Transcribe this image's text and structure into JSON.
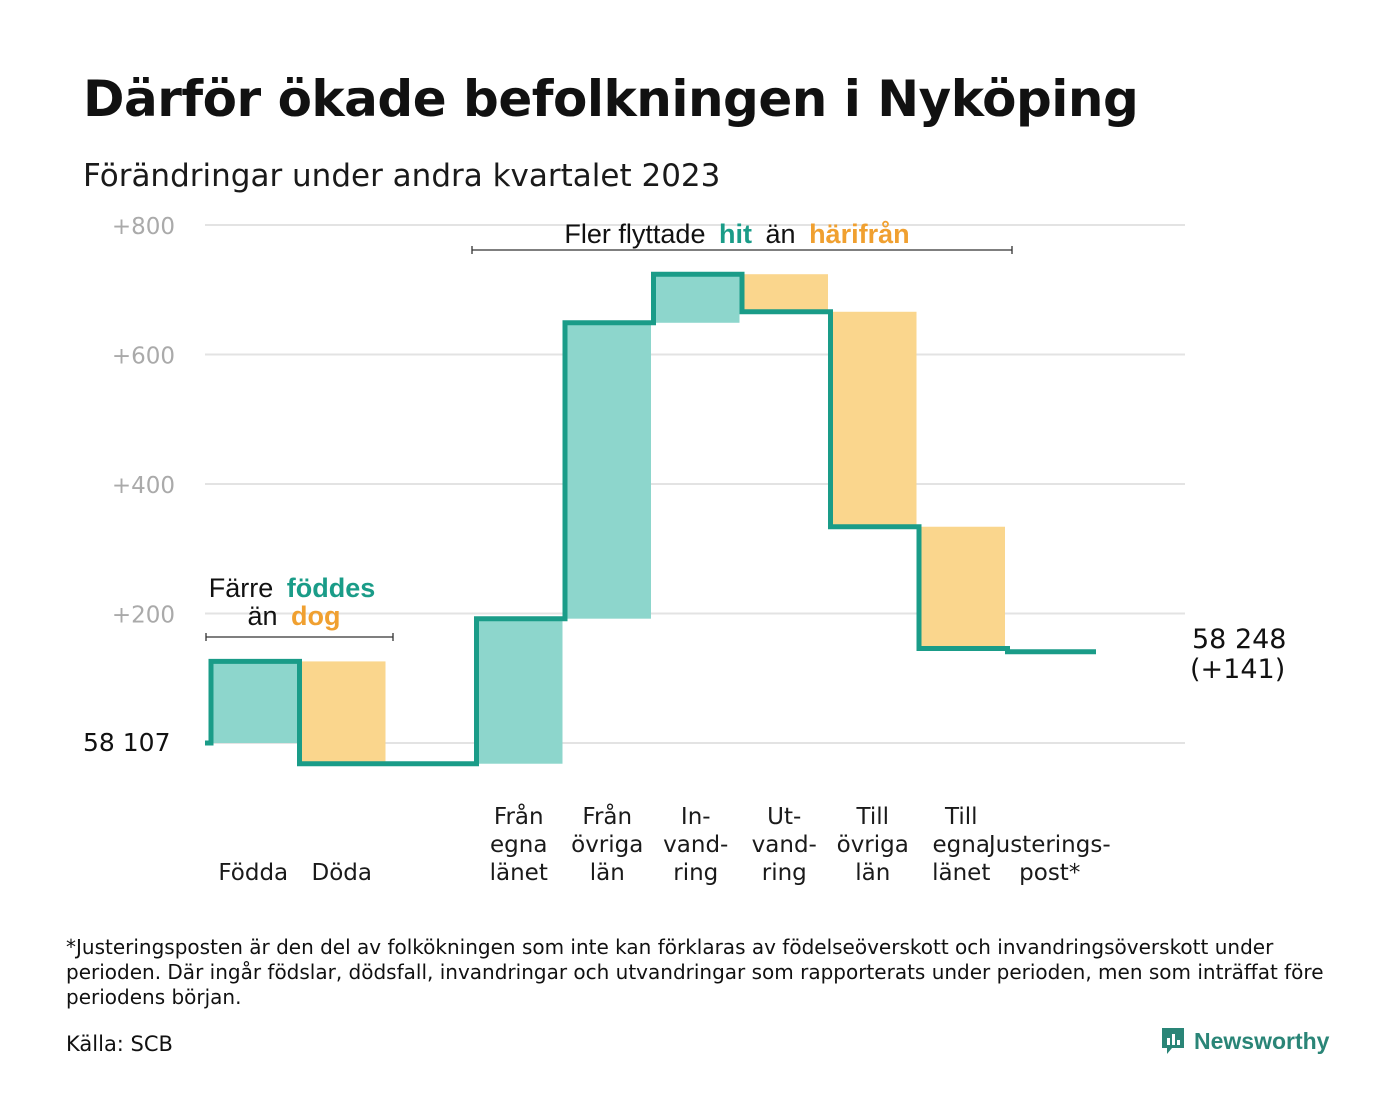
{
  "title": "Därför ökade befolkningen i Nyköping",
  "subtitle": "Förändringar under andra kvartalet 2023",
  "footnote": "*Justeringsposten är den del av folkökningen som inte kan förklaras av födelseöverskott och invandringsöverskott under perioden. Där ingår födslar, dödsfall, invandringar och utvandringar som rapporterats under perioden, men som inträffat före periodens början.",
  "source": "Källa: SCB",
  "brand": "Newsworthy",
  "colors": {
    "increase_fill": "#8dd6cc",
    "decrease_fill": "#fad68d",
    "line": "#1a9c88",
    "accent_green": "#1a9c88",
    "accent_orange": "#f0a030",
    "grid": "#e3e3e3",
    "tick_text": "#aaaaaa"
  },
  "chart_data": {
    "type": "waterfall",
    "start_value": 58107,
    "start_label": "58 107",
    "end_label_line1": "58 248",
    "end_label_line2": "(+141)",
    "ylim": [
      -35,
      800
    ],
    "yticks": [
      200,
      400,
      600,
      800
    ],
    "ytick_labels": [
      "+200",
      "+400",
      "+600",
      "+800"
    ],
    "grid": true,
    "steps": [
      {
        "label": [
          "Födda"
        ],
        "change": 126,
        "kind": "increase"
      },
      {
        "label": [
          "Döda"
        ],
        "change": -158,
        "kind": "decrease"
      },
      {
        "label": [],
        "change": 0,
        "kind": "gap"
      },
      {
        "label": [
          "Från",
          "egna",
          "länet"
        ],
        "change": 224,
        "kind": "increase"
      },
      {
        "label": [
          "Från",
          "övriga",
          "län"
        ],
        "change": 457,
        "kind": "increase"
      },
      {
        "label": [
          "In-",
          "vand-",
          "ring"
        ],
        "change": 75,
        "kind": "increase"
      },
      {
        "label": [
          "Ut-",
          "vand-",
          "ring"
        ],
        "change": -58,
        "kind": "decrease"
      },
      {
        "label": [
          "Till",
          "övriga",
          "län"
        ],
        "change": -332,
        "kind": "decrease"
      },
      {
        "label": [
          "Till",
          "egna",
          "länet"
        ],
        "change": -188,
        "kind": "decrease"
      },
      {
        "label": [
          "Justerings-",
          "post*"
        ],
        "change": -5,
        "kind": "adjust"
      }
    ],
    "annotations": {
      "left": {
        "line1": "Färre",
        "word_a": "föddes",
        "line2": "än",
        "word_b": "dog"
      },
      "right": {
        "prefix": "Fler flyttade",
        "word_a": "hit",
        "middle": "än",
        "word_b": "härifrån"
      }
    }
  }
}
